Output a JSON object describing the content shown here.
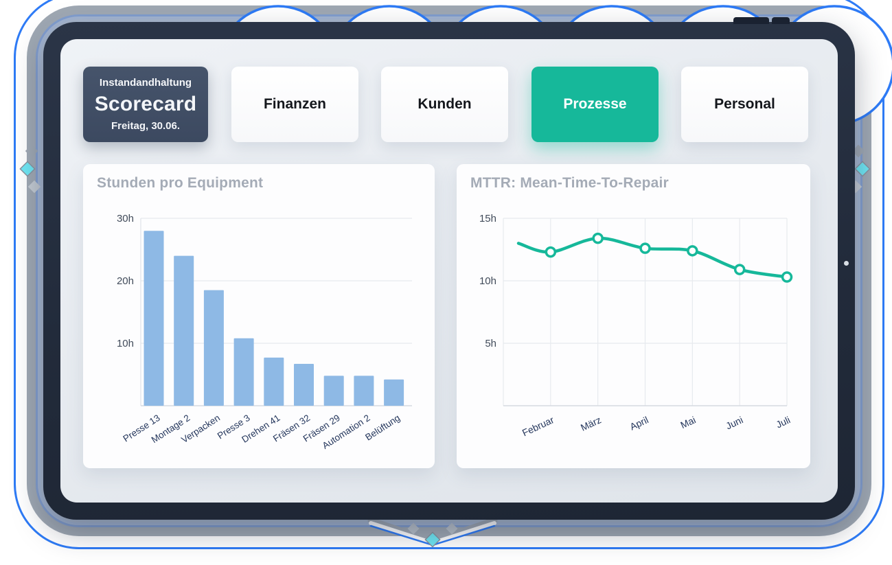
{
  "header_card": {
    "line1": "Instandandhaltung",
    "line2": "Scorecard",
    "line3": "Freitag, 30.06."
  },
  "tabs": [
    {
      "label": "Finanzen",
      "active": false
    },
    {
      "label": "Kunden",
      "active": false
    },
    {
      "label": "Prozesse",
      "active": true
    },
    {
      "label": "Personal",
      "active": false
    }
  ],
  "colors": {
    "accent_teal": "#16B89A",
    "bar_blue": "#8EB9E5",
    "scorecard_bg": "#3F4D63",
    "bezel_navy": "#222B3B",
    "title_gray": "#A4ABB6",
    "axis_label_navy": "#24365C",
    "tick_label": "#414B5A",
    "grid_line": "#E7EAEE",
    "ring_blue": "#2E7BF6",
    "ring_gray": "#9FA8B3",
    "diamond_cyan": "#6FE6F3"
  },
  "chart_data": [
    {
      "type": "bar",
      "title": "Stunden pro Equipment",
      "categories": [
        "Presse 13",
        "Montage 2",
        "Verpacken",
        "Presse 3",
        "Drehen 41",
        "Fräsen 32",
        "Fräsen 29",
        "Automation 2",
        "Belüftung"
      ],
      "values": [
        28,
        24,
        18.5,
        10.8,
        7.7,
        6.7,
        4.8,
        4.8,
        4.2
      ],
      "unit": "h",
      "ylabel": "",
      "xlabel": "",
      "ylim": [
        0,
        30
      ],
      "yticks": [
        30,
        20,
        10
      ],
      "ytick_labels": [
        "30h",
        "20h",
        "10h"
      ],
      "grid": "horizontal",
      "legend": "none"
    },
    {
      "type": "line",
      "title": "MTTR: Mean-Time-To-Repair",
      "categories": [
        "Februar",
        "März",
        "April",
        "Mai",
        "Juni",
        "Juli"
      ],
      "values": [
        12.3,
        13.4,
        12.6,
        12.4,
        10.9,
        10.3
      ],
      "lead_in_value": 13.0,
      "unit": "h",
      "ylabel": "",
      "xlabel": "",
      "ylim": [
        0,
        15
      ],
      "yticks": [
        15,
        10,
        5
      ],
      "ytick_labels": [
        "15h",
        "10h",
        "5h"
      ],
      "grid": "both",
      "legend": "none"
    }
  ]
}
